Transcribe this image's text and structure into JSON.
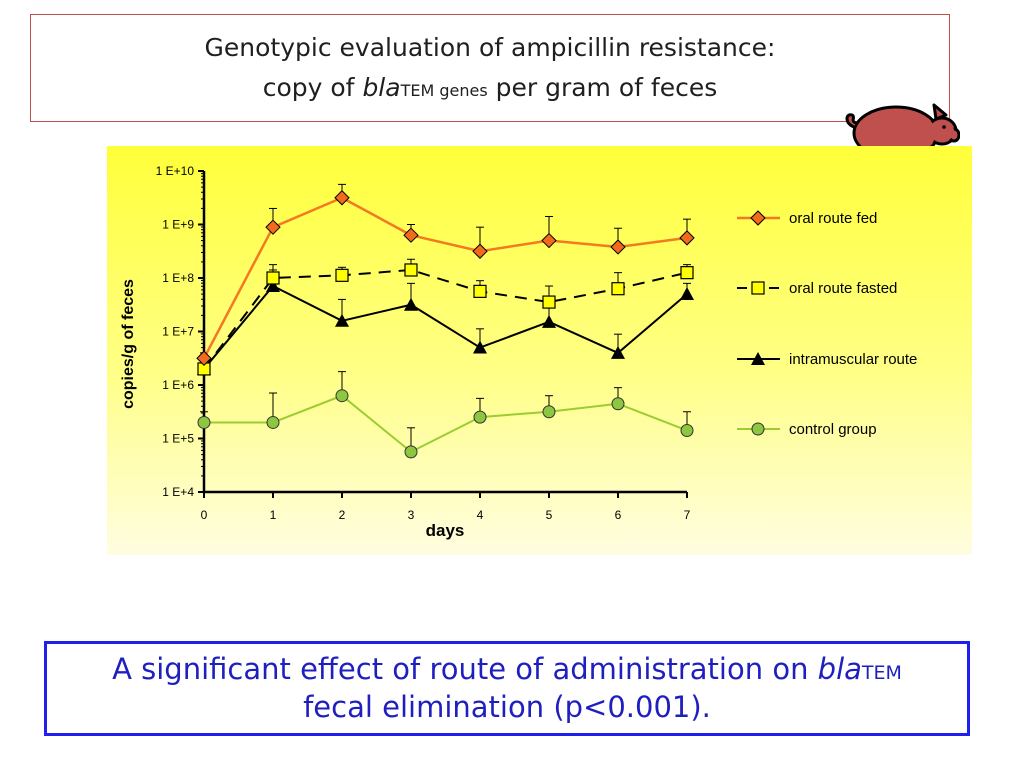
{
  "title": {
    "line1": "Genotypic evaluation of ampicillin resistance:",
    "line2_prefix": "copy of ",
    "line2_italic": "bla",
    "line2_sub": "TEM genes",
    "line2_suffix": " per gram of feces"
  },
  "conclusion": {
    "line1_prefix": "A significant effect of route of administration on ",
    "line1_italic": "bla",
    "line1_sub": "TEM",
    "line2": "fecal elimination (p<0.001)."
  },
  "colors": {
    "oral_fed": "#f47920",
    "oral_fed_marker": "#f26b1d",
    "oral_fasted": "#000000",
    "oral_fasted_marker": "#ffff00",
    "intramuscular": "#000000",
    "control": "#9acd32",
    "control_marker": "#8dc63f",
    "pig": "#c0504d"
  },
  "chart_data": {
    "type": "line",
    "title": "Genotypic evaluation of ampicillin resistance: copy of blaTEM genes per gram of feces",
    "xlabel": "days",
    "ylabel": "copies/g of feces",
    "y_scale": "log10",
    "ylim": [
      4,
      10
    ],
    "xlim": [
      0,
      7
    ],
    "x": [
      0,
      1,
      2,
      3,
      4,
      5,
      6,
      7
    ],
    "x_tick_labels": [
      "0",
      "1",
      "2",
      "3",
      "4",
      "5",
      "6",
      "7"
    ],
    "y_ticks": [
      4,
      5,
      6,
      7,
      8,
      9,
      10
    ],
    "y_tick_labels": [
      "1 E+4",
      "1 E+5",
      "1 E+6",
      "1 E+7",
      "1 E+8",
      "1 E+9",
      "1 E+10"
    ],
    "legend_position": "right",
    "series": [
      {
        "key": "oral_fed",
        "name": "oral route fed",
        "marker": "diamond",
        "line_style": "solid",
        "log10_values": [
          6.5,
          8.95,
          9.5,
          8.8,
          8.5,
          8.7,
          8.58,
          8.75
        ],
        "log10_err_upper": [
          0.1,
          0.35,
          0.25,
          0.2,
          0.45,
          0.45,
          0.35,
          0.35
        ]
      },
      {
        "key": "oral_fasted",
        "name": "oral route fasted",
        "marker": "square",
        "line_style": "dashed",
        "log10_values": [
          6.3,
          8.0,
          8.05,
          8.15,
          7.75,
          7.55,
          7.8,
          8.1
        ],
        "log10_err_upper": [
          0.2,
          0.25,
          0.15,
          0.2,
          0.2,
          0.3,
          0.3,
          0.15
        ]
      },
      {
        "key": "intramuscular",
        "name": "intramuscular route",
        "marker": "triangle",
        "line_style": "solid",
        "log10_values": [
          6.3,
          7.85,
          7.2,
          7.5,
          6.7,
          7.18,
          6.6,
          7.7
        ],
        "log10_err_upper": [
          0.25,
          0.3,
          0.4,
          0.4,
          0.35,
          0.3,
          0.35,
          0.2
        ]
      },
      {
        "key": "control",
        "name": "control group",
        "marker": "circle",
        "line_style": "solid",
        "log10_values": [
          5.3,
          5.3,
          5.8,
          4.75,
          5.4,
          5.5,
          5.65,
          5.15
        ],
        "log10_err_upper": [
          0.2,
          0.55,
          0.45,
          0.45,
          0.35,
          0.3,
          0.3,
          0.35
        ]
      }
    ]
  }
}
